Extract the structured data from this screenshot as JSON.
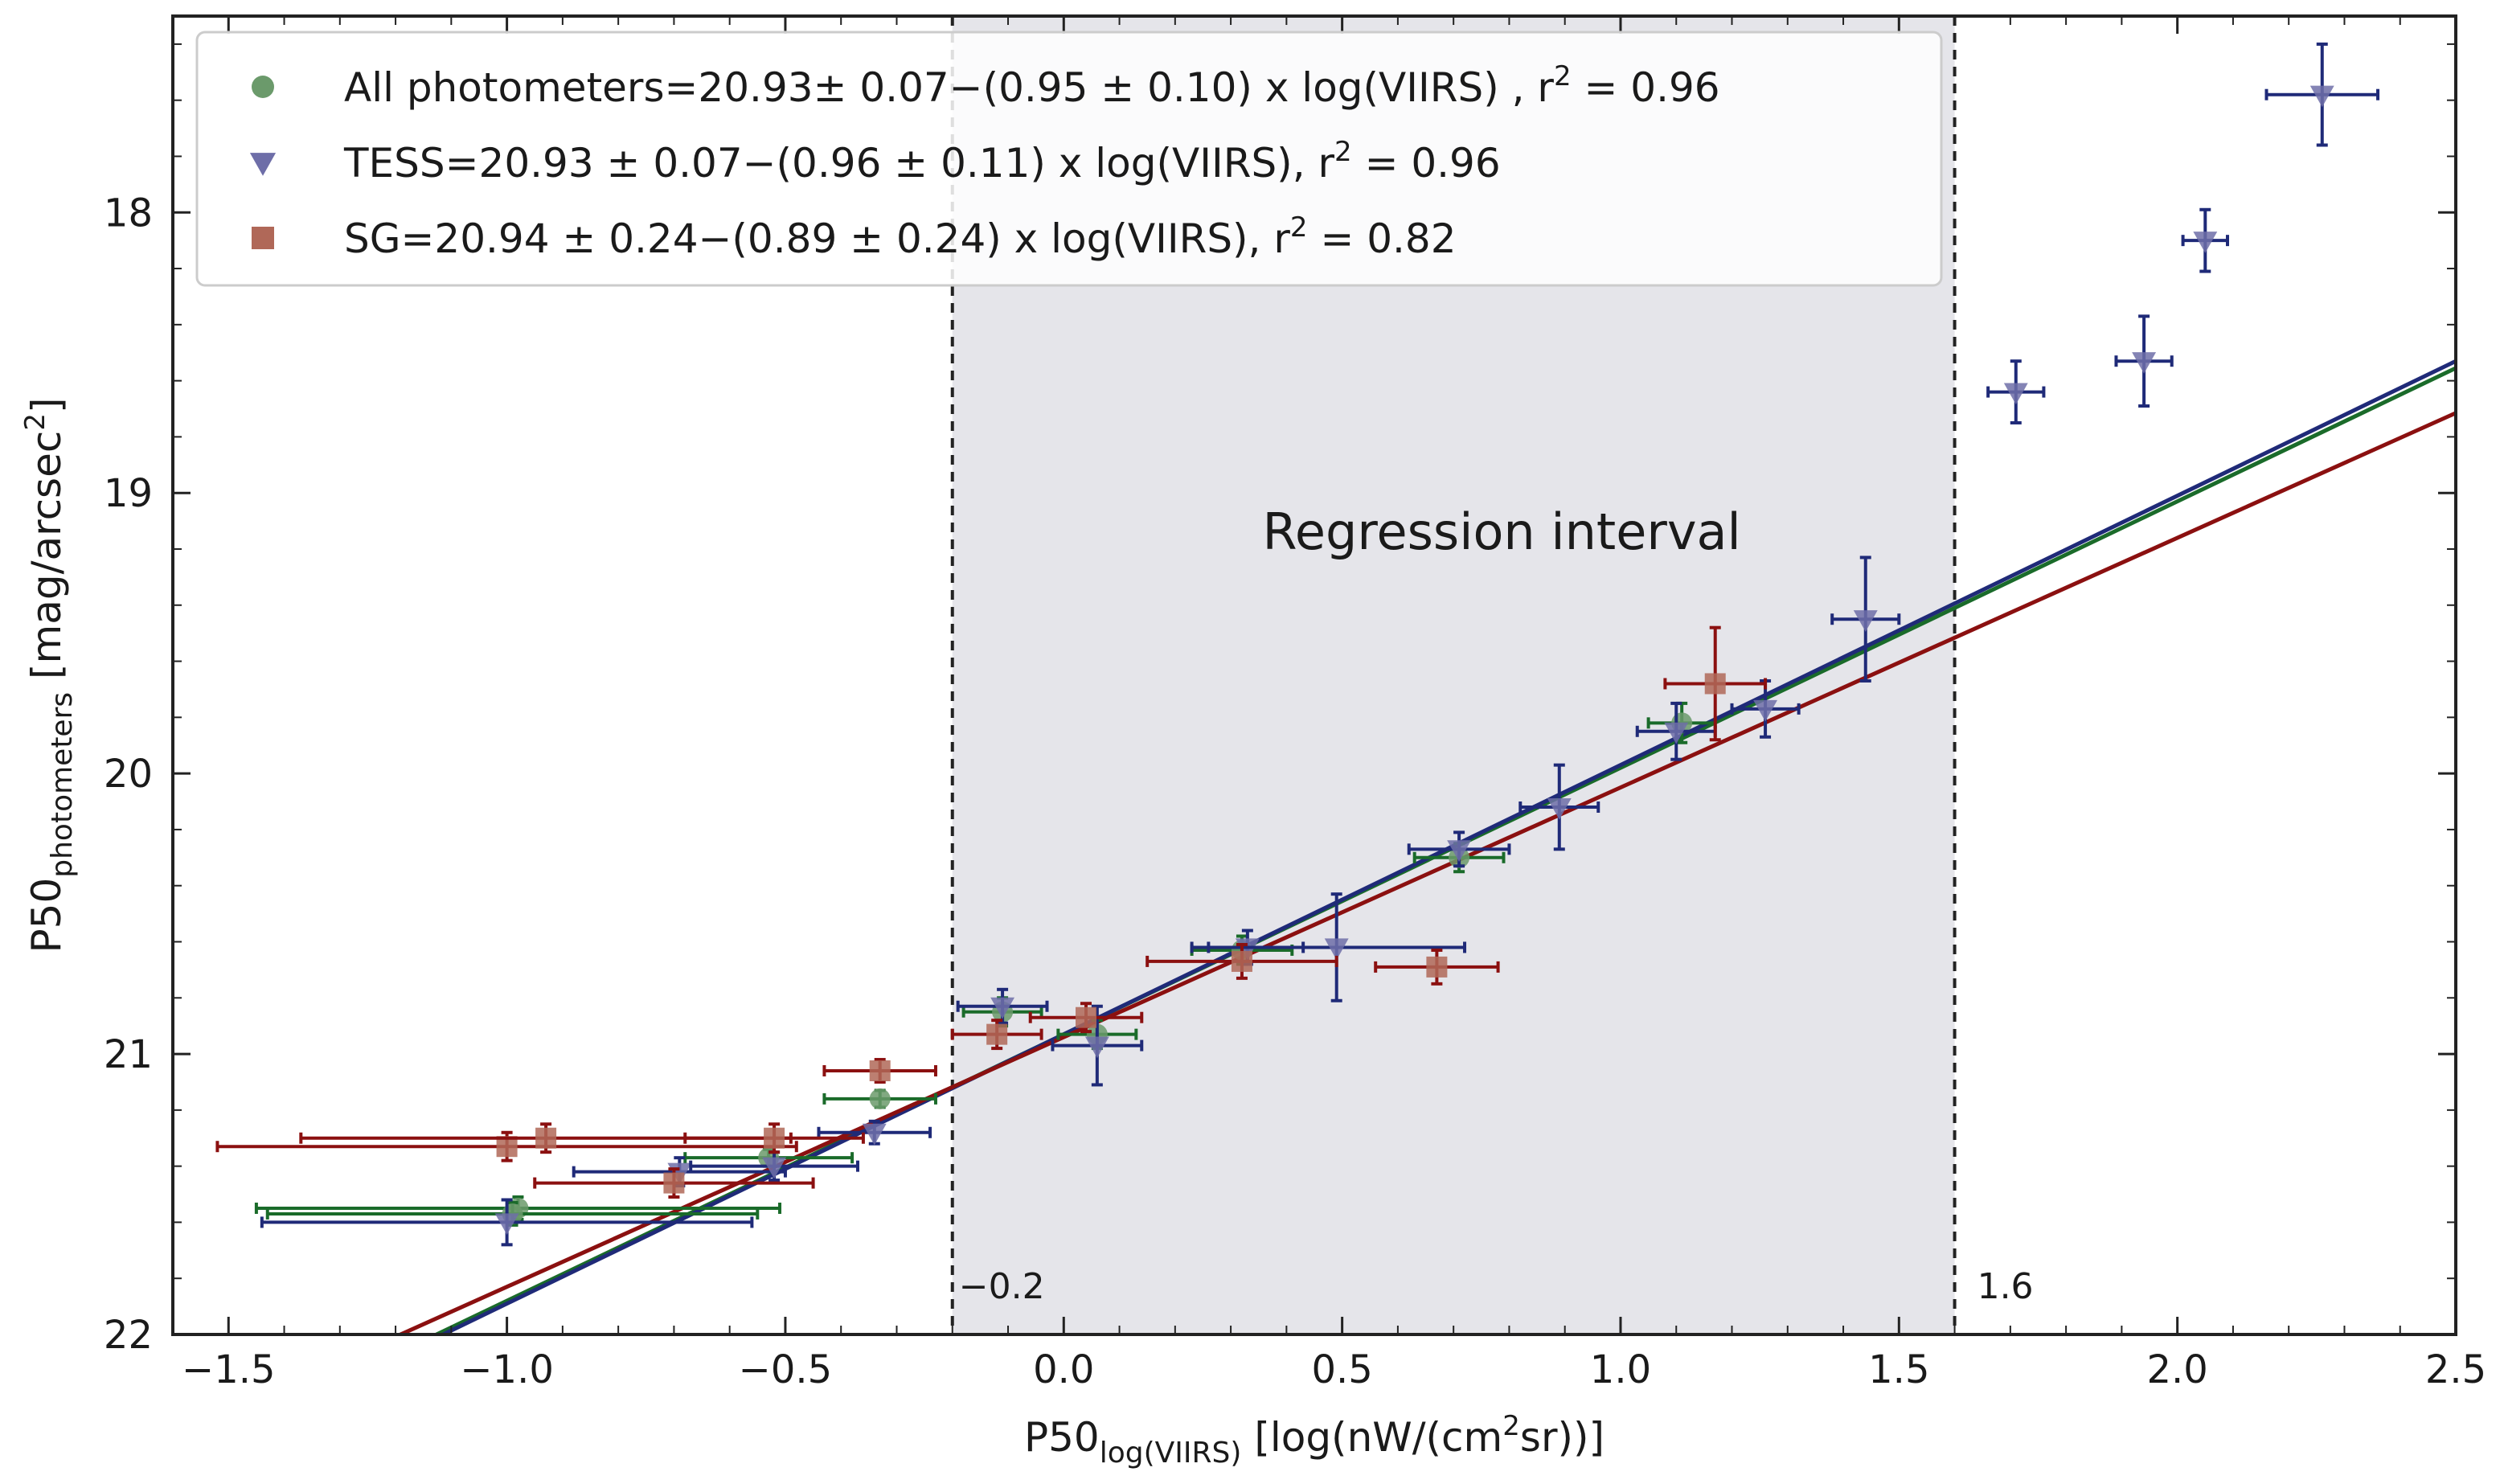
{
  "chart_data": {
    "type": "scatter",
    "title": "",
    "xlabel": {
      "main": "P50",
      "sub": "log(VIIRS)",
      "unit": " [log(nW/(cm",
      "sup": "2",
      "unit_end": "sr))]"
    },
    "ylabel": {
      "main": "P50",
      "sub": "photometers",
      "unit": " [mag/arcsec",
      "sup": "2",
      "unit_end": "]"
    },
    "xlim": [
      -1.6,
      2.5
    ],
    "ylim": [
      22.0,
      17.3
    ],
    "y_inverted": true,
    "xticks": [
      -1.5,
      -1.0,
      -0.5,
      0.0,
      0.5,
      1.0,
      1.5,
      2.0,
      2.5
    ],
    "xtick_labels": [
      "−1.5",
      "−1.0",
      "−0.5",
      "0.0",
      "0.5",
      "1.0",
      "1.5",
      "2.0",
      "2.5"
    ],
    "yticks": [
      18,
      19,
      20,
      21,
      22
    ],
    "ytick_labels": [
      "18",
      "19",
      "20",
      "21",
      "22"
    ],
    "regression_interval": {
      "x0": -0.2,
      "x1": 1.6,
      "label": "Regression interval",
      "x0_label": "−0.2",
      "x1_label": "1.6",
      "shade_color": "#e5e5ea"
    },
    "legend": {
      "placement": "top-left",
      "entries": [
        {
          "marker": "circle",
          "color": "#6b9a6b",
          "text": "All photometers=20.93± 0.07−(0.95 ± 0.10) x log(VIIRS) , r",
          "sup": "2",
          "tail": " = 0.96"
        },
        {
          "marker": "triangle-down",
          "color": "#6e6ea8",
          "text": "TESS=20.93 ± 0.07−(0.96 ± 0.11) x log(VIIRS), r",
          "sup": "2",
          "tail": " = 0.96"
        },
        {
          "marker": "square",
          "color": "#b06858",
          "text": "SG=20.94 ± 0.24−(0.89 ± 0.24) x log(VIIRS), r",
          "sup": "2",
          "tail": " = 0.82"
        }
      ]
    },
    "fits": [
      {
        "name": "All photometers",
        "color": "#1a6b2a",
        "intercept": 20.93,
        "slope": -0.95
      },
      {
        "name": "TESS",
        "color": "#1f2a78",
        "intercept": 20.93,
        "slope": -0.96
      },
      {
        "name": "SG",
        "color": "#8b1010",
        "intercept": 20.94,
        "slope": -0.89
      }
    ],
    "series": [
      {
        "name": "All photometers",
        "marker": "circle",
        "color": "#6b9a6b",
        "err_color": "#1a6b2a",
        "points": [
          {
            "x": -0.98,
            "y": 21.55,
            "xerr": 0.47,
            "yerr": 0.04
          },
          {
            "x": -0.99,
            "y": 21.57,
            "xerr": 0.44,
            "yerr": 0.04
          },
          {
            "x": -0.53,
            "y": 21.37,
            "xerr": 0.15,
            "yerr": 0.03
          },
          {
            "x": -0.33,
            "y": 21.16,
            "xerr": 0.1,
            "yerr": 0.03
          },
          {
            "x": -0.11,
            "y": 20.85,
            "xerr": 0.07,
            "yerr": 0.05
          },
          {
            "x": 0.06,
            "y": 20.93,
            "xerr": 0.07,
            "yerr": 0.05
          },
          {
            "x": 0.32,
            "y": 20.63,
            "xerr": 0.09,
            "yerr": 0.05
          },
          {
            "x": 0.71,
            "y": 20.3,
            "xerr": 0.08,
            "yerr": 0.05
          },
          {
            "x": 1.11,
            "y": 19.82,
            "xerr": 0.06,
            "yerr": 0.07
          }
        ]
      },
      {
        "name": "TESS",
        "marker": "triangle-down",
        "color": "#6e6ea8",
        "err_color": "#1f2a78",
        "points": [
          {
            "x": -1.0,
            "y": 21.6,
            "xerr": 0.44,
            "yerr": 0.08
          },
          {
            "x": -0.69,
            "y": 21.42,
            "xerr": 0.19,
            "yerr": 0.05
          },
          {
            "x": -0.52,
            "y": 21.4,
            "xerr": 0.15,
            "yerr": 0.05
          },
          {
            "x": -0.34,
            "y": 21.28,
            "xerr": 0.1,
            "yerr": 0.04
          },
          {
            "x": -0.11,
            "y": 20.83,
            "xerr": 0.08,
            "yerr": 0.06
          },
          {
            "x": 0.06,
            "y": 20.97,
            "xerr": 0.08,
            "yerr": 0.14
          },
          {
            "x": 0.33,
            "y": 20.62,
            "xerr": 0.1,
            "yerr": 0.06
          },
          {
            "x": 0.49,
            "y": 20.62,
            "xerr": 0.23,
            "yerr": 0.19
          },
          {
            "x": 0.71,
            "y": 20.27,
            "xerr": 0.09,
            "yerr": 0.06
          },
          {
            "x": 0.89,
            "y": 20.12,
            "xerr": 0.07,
            "yerr": 0.15
          },
          {
            "x": 1.1,
            "y": 19.85,
            "xerr": 0.07,
            "yerr": 0.1
          },
          {
            "x": 1.26,
            "y": 19.77,
            "xerr": 0.06,
            "yerr": 0.1
          },
          {
            "x": 1.44,
            "y": 19.45,
            "xerr": 0.06,
            "yerr": 0.22
          },
          {
            "x": 1.71,
            "y": 18.64,
            "xerr": 0.05,
            "yerr": 0.11
          },
          {
            "x": 1.94,
            "y": 18.53,
            "xerr": 0.05,
            "yerr": 0.16
          },
          {
            "x": 2.05,
            "y": 18.1,
            "xerr": 0.04,
            "yerr": 0.11
          },
          {
            "x": 2.26,
            "y": 17.58,
            "xerr": 0.1,
            "yerr": 0.18
          }
        ]
      },
      {
        "name": "SG",
        "marker": "square",
        "color": "#b06858",
        "err_color": "#8b1010",
        "points": [
          {
            "x": -1.0,
            "y": 21.33,
            "xerr": 0.52,
            "yerr": 0.05
          },
          {
            "x": -0.93,
            "y": 21.3,
            "xerr": 0.44,
            "yerr": 0.05
          },
          {
            "x": -0.7,
            "y": 21.46,
            "xerr": 0.25,
            "yerr": 0.05
          },
          {
            "x": -0.52,
            "y": 21.3,
            "xerr": 0.16,
            "yerr": 0.05
          },
          {
            "x": -0.33,
            "y": 21.06,
            "xerr": 0.1,
            "yerr": 0.04
          },
          {
            "x": -0.12,
            "y": 20.93,
            "xerr": 0.08,
            "yerr": 0.05
          },
          {
            "x": 0.04,
            "y": 20.87,
            "xerr": 0.1,
            "yerr": 0.05
          },
          {
            "x": 0.32,
            "y": 20.67,
            "xerr": 0.17,
            "yerr": 0.06
          },
          {
            "x": 0.67,
            "y": 20.69,
            "xerr": 0.11,
            "yerr": 0.06
          },
          {
            "x": 1.17,
            "y": 19.68,
            "xerr": 0.09,
            "yerr": 0.2
          }
        ]
      }
    ]
  }
}
